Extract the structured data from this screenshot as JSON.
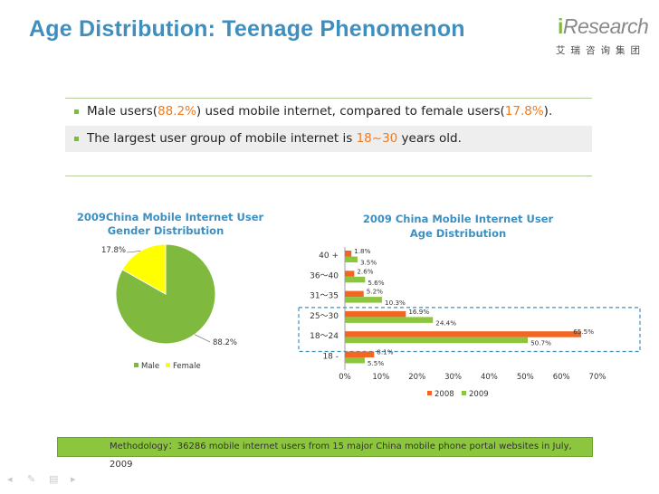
{
  "header": {
    "title": "Age Distribution: Teenage Phenomenon",
    "logo_text_i": "i",
    "logo_text_rest": "Research",
    "logo_cn": "艾瑞咨询集团"
  },
  "bullets": [
    {
      "parts": [
        "Male users(",
        "88.2%",
        ") used mobile internet, compared to female users(",
        "17.8%",
        ")."
      ]
    },
    {
      "parts": [
        "The largest user group of mobile internet is ",
        "18~30",
        " years old."
      ]
    }
  ],
  "footer": {
    "methodology": "Methodology：36286 mobile internet users from 15 major China mobile phone portal websites in July, 2009"
  },
  "colors": {
    "title": "#3e8fbf",
    "accent_green": "#8cc63f",
    "accent_orange": "#f07b1f",
    "male": "#7fba3f",
    "female": "#ffff00",
    "series_2008": "#f26522",
    "series_2009": "#8cc63f",
    "highlight_box": "#3e8fbf"
  },
  "chart_data": [
    {
      "type": "pie",
      "title_line1": "2009China Mobile Internet User",
      "title_line2": "Gender Distribution",
      "categories": [
        "Male",
        "Female"
      ],
      "values": [
        88.2,
        17.8
      ],
      "labels": [
        "88.2%",
        "17.8%"
      ],
      "legend": "bottom"
    },
    {
      "type": "bar",
      "orientation": "horizontal",
      "title_line1": "2009 China Mobile Internet User",
      "title_line2": "Age Distribution",
      "categories": [
        "40 +",
        "36～40",
        "31～35",
        "25～30",
        "18～24",
        "18 -"
      ],
      "series": [
        {
          "name": "2008",
          "values": [
            1.8,
            2.6,
            5.2,
            16.9,
            65.5,
            8.1
          ],
          "labels": [
            "1.8%",
            "2.6%",
            "5.2%",
            "16.9%",
            "65.5%",
            "8.1%"
          ]
        },
        {
          "name": "2009",
          "values": [
            3.5,
            5.6,
            10.3,
            24.4,
            50.7,
            5.5
          ],
          "labels": [
            "3.5%",
            "5.6%",
            "10.3%",
            "24.4%",
            "50.7%",
            "5.5%"
          ]
        }
      ],
      "xlim": [
        0,
        70
      ],
      "xticks": [
        "0%",
        "10%",
        "20%",
        "30%",
        "40%",
        "50%",
        "60%",
        "70%"
      ],
      "legend": "bottom",
      "highlighted_categories": [
        "25～30",
        "18～24"
      ]
    }
  ]
}
